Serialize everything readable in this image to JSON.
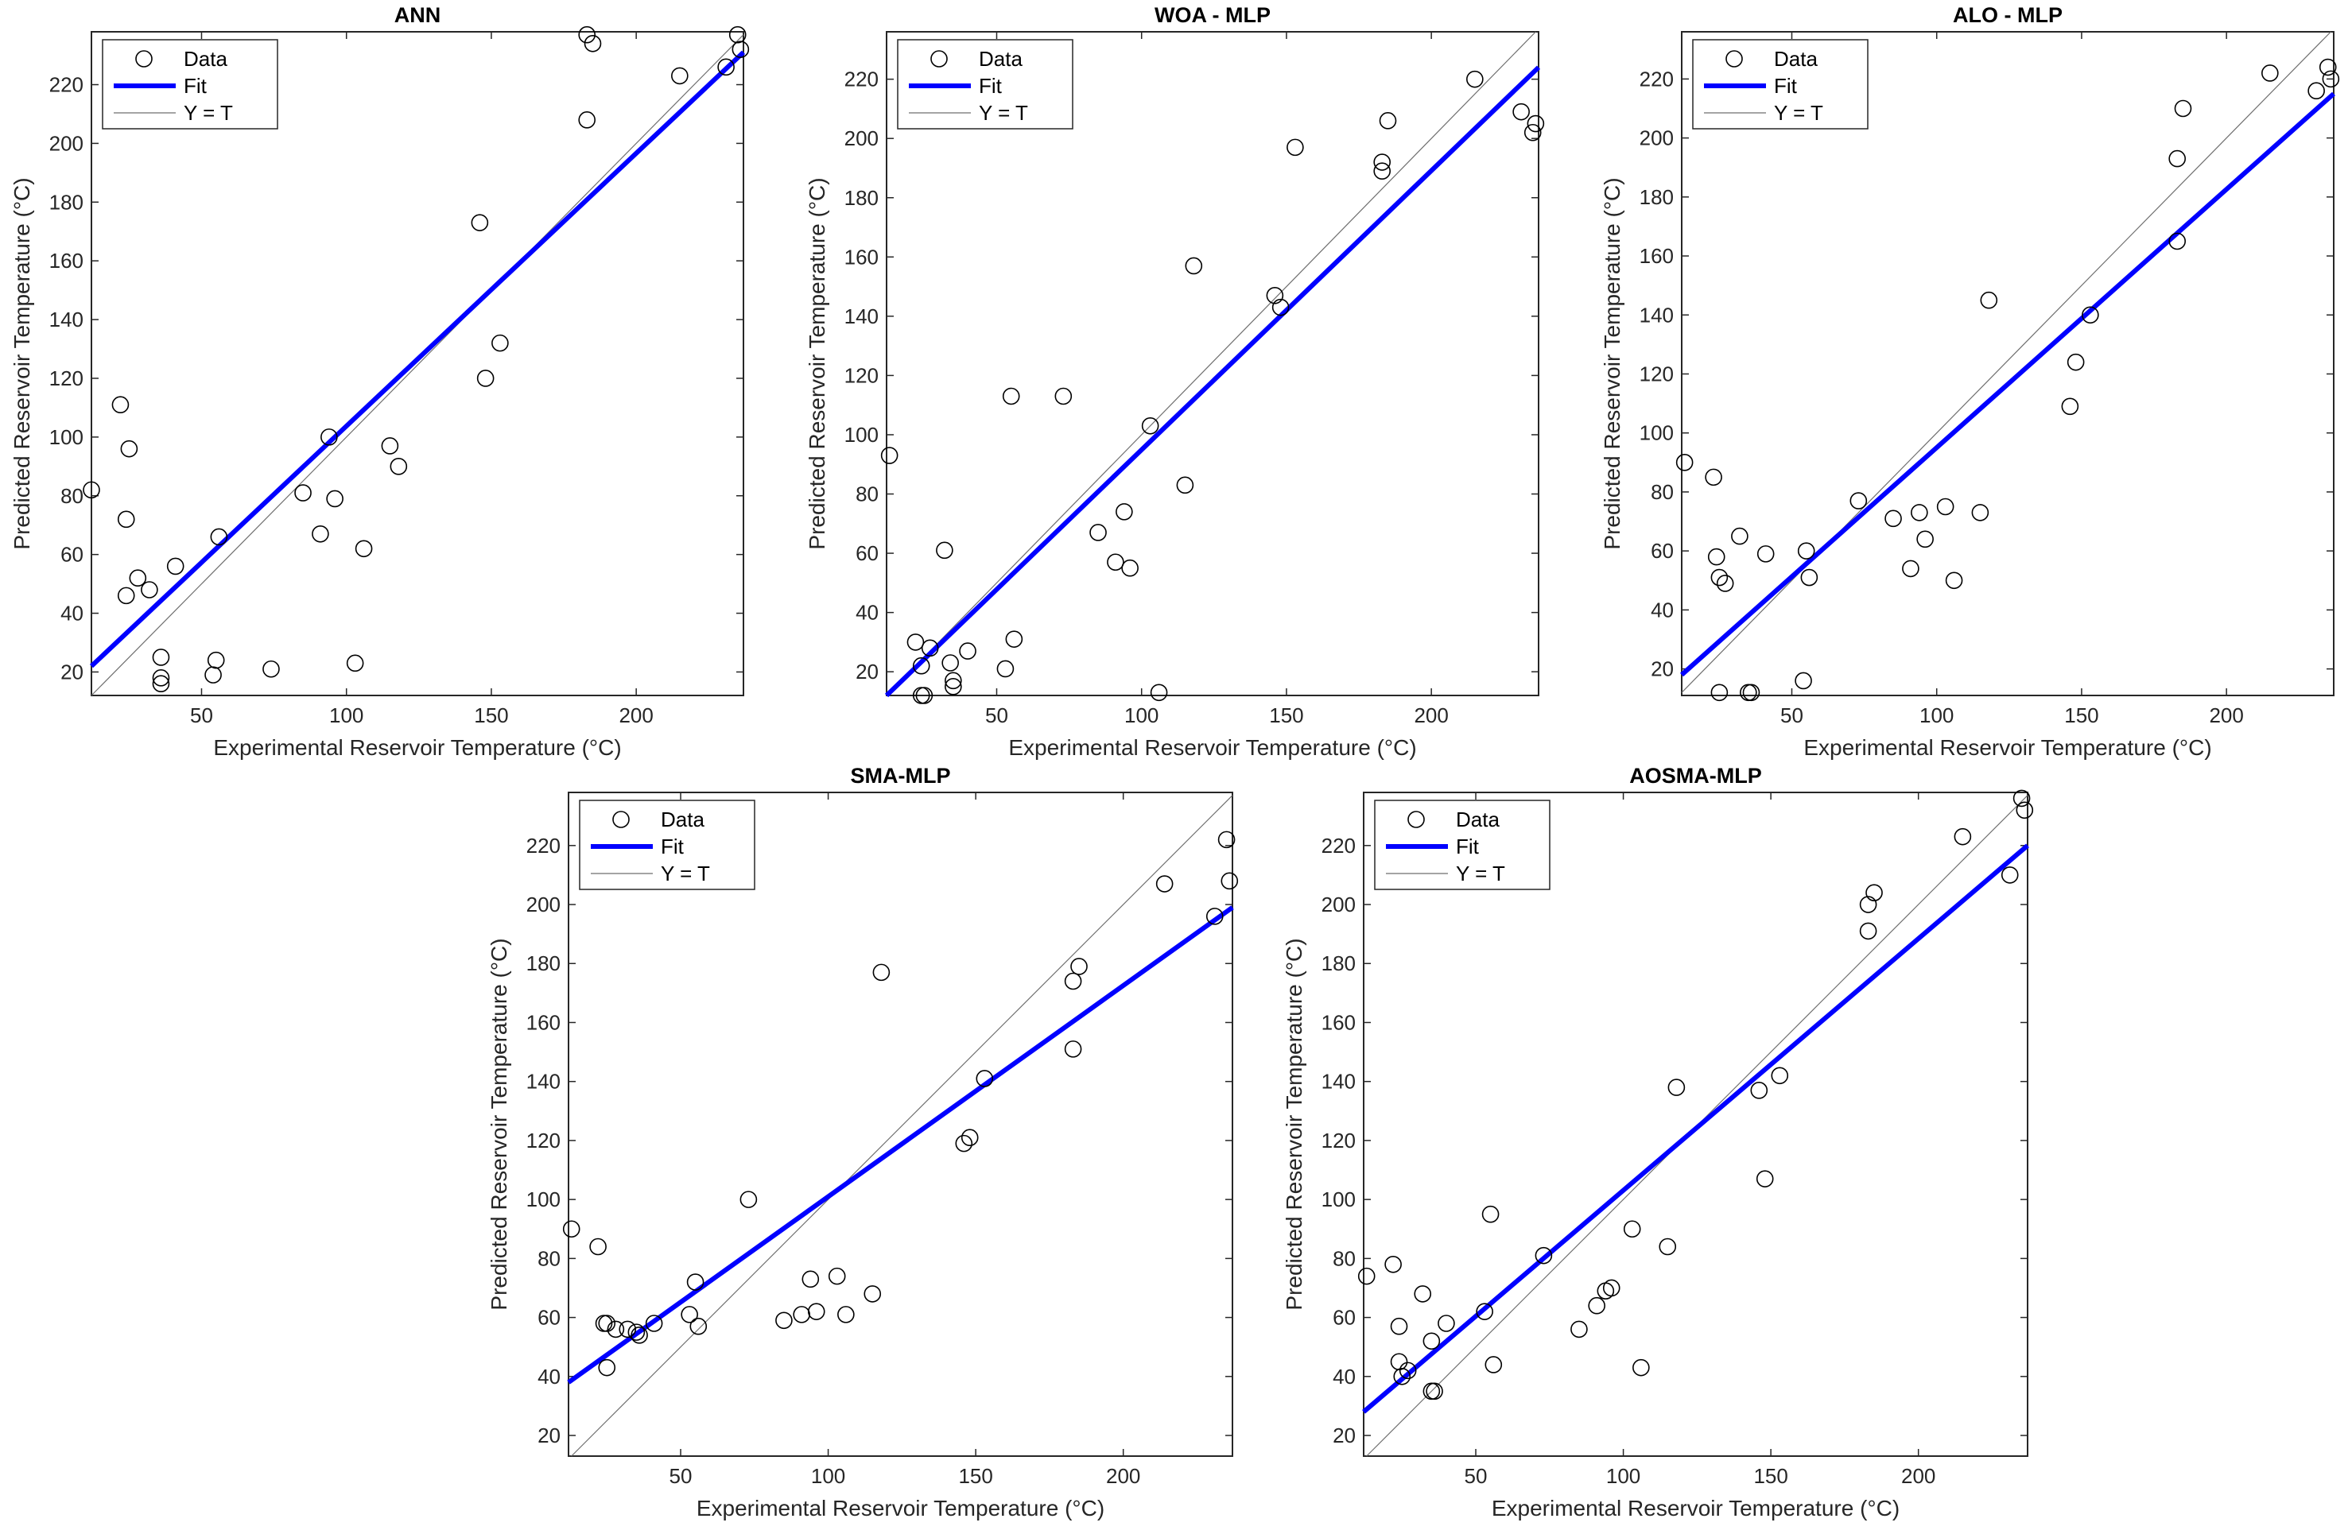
{
  "figure": {
    "line_colors": {
      "fit": "#0000ff",
      "identity": "#6e6e6e",
      "data_marker": "#000000",
      "axes": "#262626"
    }
  },
  "chart_data": [
    {
      "type": "scatter",
      "title": "ANN",
      "xlabel": "Experimental Reservoir Temperature (°C)",
      "ylabel": "Predicted Reservoir Temperature (°C)",
      "xlim": [
        12,
        237
      ],
      "ylim": [
        12,
        238
      ],
      "xticks": [
        50,
        100,
        150,
        200
      ],
      "yticks": [
        20,
        40,
        60,
        80,
        100,
        120,
        140,
        160,
        180,
        200,
        220
      ],
      "legend": {
        "position": "top-left",
        "entries": [
          "Data",
          "Fit",
          "Y = T"
        ]
      },
      "fit": [
        [
          12,
          22
        ],
        [
          237,
          231
        ]
      ],
      "points": [
        [
          12,
          82
        ],
        [
          22,
          111
        ],
        [
          24,
          72
        ],
        [
          24,
          46
        ],
        [
          25,
          96
        ],
        [
          28,
          52
        ],
        [
          32,
          48
        ],
        [
          36,
          25
        ],
        [
          36,
          18
        ],
        [
          36,
          16
        ],
        [
          41,
          56
        ],
        [
          54,
          19
        ],
        [
          55,
          24
        ],
        [
          56,
          66
        ],
        [
          74,
          21
        ],
        [
          85,
          81
        ],
        [
          91,
          67
        ],
        [
          94,
          100
        ],
        [
          96,
          79
        ],
        [
          103,
          23
        ],
        [
          106,
          62
        ],
        [
          115,
          97
        ],
        [
          118,
          90
        ],
        [
          146,
          173
        ],
        [
          148,
          120
        ],
        [
          153,
          132
        ],
        [
          183,
          208
        ],
        [
          183,
          237
        ],
        [
          185,
          234
        ],
        [
          215,
          223
        ],
        [
          231,
          226
        ],
        [
          235,
          237
        ],
        [
          236,
          232
        ]
      ]
    },
    {
      "type": "scatter",
      "title": "WOA - MLP",
      "xlabel": "Experimental Reservoir Temperature (°C)",
      "ylabel": "Predicted Reservoir Temperature (°C)",
      "xlim": [
        12,
        237
      ],
      "ylim": [
        12,
        236
      ],
      "xticks": [
        50,
        100,
        150,
        200
      ],
      "yticks": [
        20,
        40,
        60,
        80,
        100,
        120,
        140,
        160,
        180,
        200,
        220
      ],
      "legend": {
        "position": "top-left",
        "entries": [
          "Data",
          "Fit",
          "Y = T"
        ]
      },
      "fit": [
        [
          12,
          12
        ],
        [
          237,
          224
        ]
      ],
      "points": [
        [
          13,
          93
        ],
        [
          22,
          30
        ],
        [
          24,
          22
        ],
        [
          24,
          12
        ],
        [
          25,
          12
        ],
        [
          27,
          28
        ],
        [
          32,
          61
        ],
        [
          34,
          23
        ],
        [
          35,
          17
        ],
        [
          35,
          15
        ],
        [
          40,
          27
        ],
        [
          53,
          21
        ],
        [
          55,
          113
        ],
        [
          56,
          31
        ],
        [
          73,
          113
        ],
        [
          85,
          67
        ],
        [
          91,
          57
        ],
        [
          94,
          74
        ],
        [
          96,
          55
        ],
        [
          103,
          103
        ],
        [
          106,
          13
        ],
        [
          115,
          83
        ],
        [
          118,
          157
        ],
        [
          146,
          147
        ],
        [
          148,
          143
        ],
        [
          153,
          197
        ],
        [
          183,
          192
        ],
        [
          183,
          189
        ],
        [
          185,
          206
        ],
        [
          215,
          220
        ],
        [
          231,
          209
        ],
        [
          235,
          202
        ],
        [
          236,
          205
        ]
      ]
    },
    {
      "type": "scatter",
      "title": "ALO - MLP",
      "xlabel": "Experimental Reservoir Temperature (°C)",
      "ylabel": "Predicted Reservoir Temperature (°C)",
      "xlim": [
        12,
        237
      ],
      "ylim": [
        11,
        236
      ],
      "xticks": [
        50,
        100,
        150,
        200
      ],
      "yticks": [
        20,
        40,
        60,
        80,
        100,
        120,
        140,
        160,
        180,
        200,
        220
      ],
      "legend": {
        "position": "top-left",
        "entries": [
          "Data",
          "Fit",
          "Y = T"
        ]
      },
      "fit": [
        [
          12,
          18
        ],
        [
          237,
          215
        ]
      ],
      "points": [
        [
          13,
          90
        ],
        [
          23,
          85
        ],
        [
          24,
          58
        ],
        [
          25,
          51
        ],
        [
          25,
          12
        ],
        [
          27,
          49
        ],
        [
          32,
          65
        ],
        [
          35,
          12
        ],
        [
          36,
          12
        ],
        [
          41,
          59
        ],
        [
          54,
          16
        ],
        [
          55,
          60
        ],
        [
          56,
          51
        ],
        [
          73,
          77
        ],
        [
          85,
          71
        ],
        [
          91,
          54
        ],
        [
          94,
          73
        ],
        [
          96,
          64
        ],
        [
          103,
          75
        ],
        [
          106,
          50
        ],
        [
          115,
          73
        ],
        [
          118,
          145
        ],
        [
          146,
          109
        ],
        [
          148,
          124
        ],
        [
          153,
          140
        ],
        [
          183,
          193
        ],
        [
          183,
          165
        ],
        [
          185,
          210
        ],
        [
          215,
          222
        ],
        [
          231,
          216
        ],
        [
          235,
          224
        ],
        [
          236,
          220
        ]
      ]
    },
    {
      "type": "scatter",
      "title": "SMA-MLP",
      "xlabel": "Experimental Reservoir Temperature (°C)",
      "ylabel": "Predicted Reservoir Temperature (°C)",
      "xlim": [
        12,
        237
      ],
      "ylim": [
        13,
        238
      ],
      "xticks": [
        50,
        100,
        150,
        200
      ],
      "yticks": [
        20,
        40,
        60,
        80,
        100,
        120,
        140,
        160,
        180,
        200,
        220
      ],
      "legend": {
        "position": "top-left",
        "entries": [
          "Data",
          "Fit",
          "Y = T"
        ]
      },
      "fit": [
        [
          12,
          38
        ],
        [
          237,
          199
        ]
      ],
      "points": [
        [
          13,
          90
        ],
        [
          22,
          84
        ],
        [
          24,
          58
        ],
        [
          25,
          58
        ],
        [
          25,
          43
        ],
        [
          28,
          56
        ],
        [
          32,
          56
        ],
        [
          35,
          55
        ],
        [
          36,
          54
        ],
        [
          41,
          58
        ],
        [
          53,
          61
        ],
        [
          55,
          72
        ],
        [
          56,
          57
        ],
        [
          73,
          100
        ],
        [
          85,
          59
        ],
        [
          91,
          61
        ],
        [
          94,
          73
        ],
        [
          96,
          62
        ],
        [
          103,
          74
        ],
        [
          106,
          61
        ],
        [
          115,
          68
        ],
        [
          118,
          177
        ],
        [
          146,
          119
        ],
        [
          148,
          121
        ],
        [
          153,
          141
        ],
        [
          183,
          151
        ],
        [
          183,
          174
        ],
        [
          185,
          179
        ],
        [
          214,
          207
        ],
        [
          231,
          196
        ],
        [
          235,
          222
        ],
        [
          236,
          208
        ]
      ]
    },
    {
      "type": "scatter",
      "title": "AOSMA-MLP",
      "xlabel": "Experimental Reservoir Temperature (°C)",
      "ylabel": "Predicted Reservoir Temperature (°C)",
      "xlim": [
        12,
        237
      ],
      "ylim": [
        13,
        238
      ],
      "xticks": [
        50,
        100,
        150,
        200
      ],
      "yticks": [
        20,
        40,
        60,
        80,
        100,
        120,
        140,
        160,
        180,
        200,
        220
      ],
      "legend": {
        "position": "top-left",
        "entries": [
          "Data",
          "Fit",
          "Y = T"
        ]
      },
      "fit": [
        [
          12,
          28
        ],
        [
          237,
          220
        ]
      ],
      "points": [
        [
          13,
          74
        ],
        [
          22,
          78
        ],
        [
          24,
          57
        ],
        [
          24,
          45
        ],
        [
          25,
          40
        ],
        [
          27,
          42
        ],
        [
          32,
          68
        ],
        [
          35,
          52
        ],
        [
          35,
          35
        ],
        [
          36,
          35
        ],
        [
          40,
          58
        ],
        [
          53,
          62
        ],
        [
          55,
          95
        ],
        [
          56,
          44
        ],
        [
          73,
          81
        ],
        [
          85,
          56
        ],
        [
          91,
          64
        ],
        [
          94,
          69
        ],
        [
          96,
          70
        ],
        [
          103,
          90
        ],
        [
          106,
          43
        ],
        [
          115,
          84
        ],
        [
          118,
          138
        ],
        [
          146,
          137
        ],
        [
          148,
          107
        ],
        [
          153,
          142
        ],
        [
          183,
          191
        ],
        [
          183,
          200
        ],
        [
          185,
          204
        ],
        [
          215,
          223
        ],
        [
          231,
          210
        ],
        [
          235,
          236
        ],
        [
          236,
          232
        ]
      ]
    }
  ]
}
